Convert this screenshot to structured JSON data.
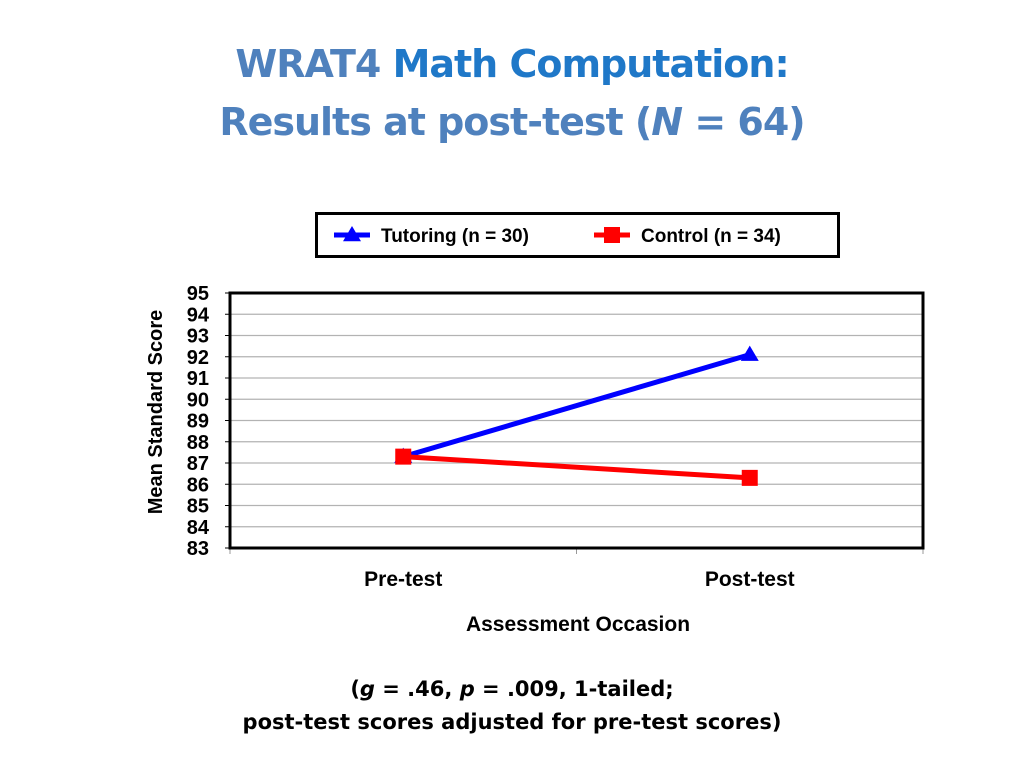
{
  "title": {
    "line1_prefix": "WRAT4",
    "line1_main": "Math Computation:",
    "line2_prefix": "Results at post-test (",
    "line2_italic": "N",
    "line2_suffix": " = 64)"
  },
  "colors": {
    "title_light": "#4f81bd",
    "title_dark": "#1f78c8",
    "tutoring": "#0000ff",
    "control": "#ff0000",
    "grid": "#b3b3b3"
  },
  "chart_data": {
    "type": "line",
    "categories": [
      "Pre-test",
      "Post-test"
    ],
    "series": [
      {
        "name": "Tutoring (n = 30)",
        "values": [
          87.3,
          92.1
        ],
        "marker": "triangle",
        "color": "#0000ff"
      },
      {
        "name": "Control (n = 34)",
        "values": [
          87.3,
          86.3
        ],
        "marker": "square",
        "color": "#ff0000"
      }
    ],
    "xlabel": "Assessment Occasion",
    "ylabel": "Mean Standard Score",
    "ylim": [
      83,
      95
    ],
    "yticks": [
      83,
      84,
      85,
      86,
      87,
      88,
      89,
      90,
      91,
      92,
      93,
      94,
      95
    ],
    "grid": true,
    "legend_position": "top"
  },
  "note": {
    "open": "(",
    "g_label": "g",
    "g_text": " = .46, ",
    "p_label": "p",
    "p_text": " = .009, 1-tailed;",
    "line2": "post-test scores adjusted for pre-test scores)"
  }
}
